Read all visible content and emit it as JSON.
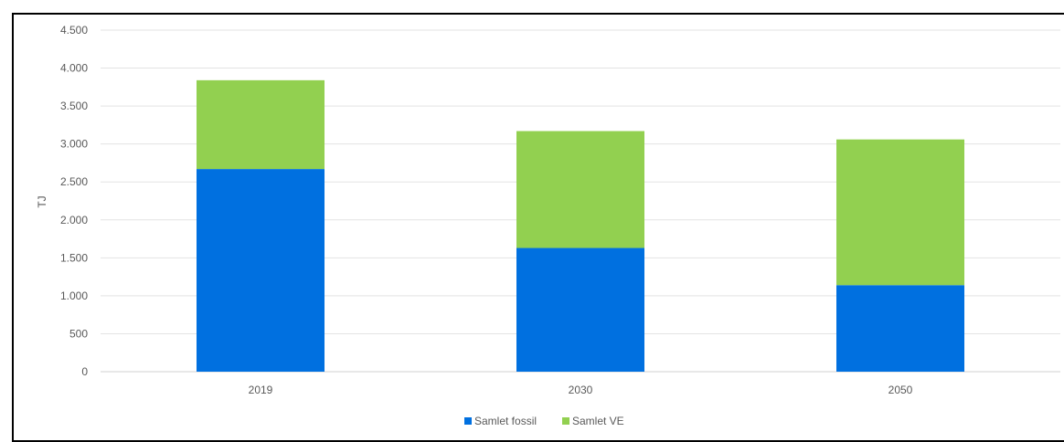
{
  "chart_data": {
    "type": "bar",
    "stacked": true,
    "categories": [
      "2019",
      "2030",
      "2050"
    ],
    "series": [
      {
        "name": "Samlet fossil",
        "values": [
          2670,
          1630,
          1140
        ],
        "color": "#0070E0"
      },
      {
        "name": "Samlet VE",
        "values": [
          1170,
          1540,
          1920
        ],
        "color": "#92D050"
      }
    ],
    "title": "",
    "xlabel": "",
    "ylabel": "TJ",
    "ylim": [
      0,
      4500
    ],
    "yticks": [
      0,
      500,
      1000,
      1500,
      2000,
      2500,
      3000,
      3500,
      4000,
      4500
    ],
    "ytick_labels": [
      "0",
      "500",
      "1.000",
      "1.500",
      "2.000",
      "2.500",
      "3.000",
      "3.500",
      "4.000",
      "4.500"
    ],
    "grid": true,
    "legend_position": "bottom"
  }
}
